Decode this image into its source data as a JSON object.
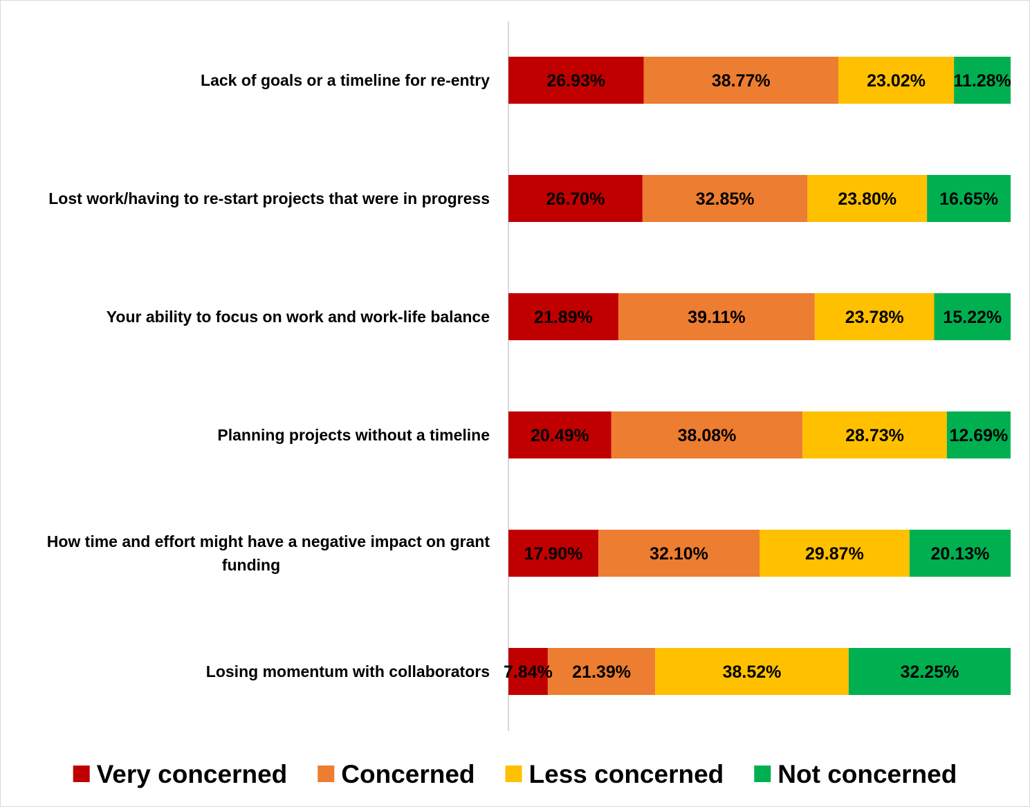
{
  "chart_data": {
    "type": "bar",
    "orientation": "horizontal",
    "stacked": "percent",
    "categories": [
      "Lack of goals or a timeline for re-entry",
      "Lost work/having to re-start projects that were in progress",
      "Your ability to focus on work and work-life balance",
      "Planning projects without a timeline",
      "How time and effort might have a negative impact on grant funding",
      "Losing momentum with collaborators"
    ],
    "category_label_lines": [
      [
        "Lack of goals or a timeline for re-entry"
      ],
      [
        "Lost work/having to re-start projects that were in progress"
      ],
      [
        "Your ability to focus on work and work-life balance"
      ],
      [
        "Planning projects without a timeline"
      ],
      [
        "How time and effort might have a negative impact on grant",
        "funding"
      ],
      [
        "Losing momentum with collaborators"
      ]
    ],
    "series": [
      {
        "name": "Very concerned",
        "color": "#C00000",
        "values": [
          26.93,
          26.7,
          21.89,
          20.49,
          17.9,
          7.84
        ],
        "labels": [
          "26.93%",
          "26.70%",
          "21.89%",
          "20.49%",
          "17.90%",
          "7.84%"
        ]
      },
      {
        "name": "Concerned",
        "color": "#ED7D31",
        "values": [
          38.77,
          32.85,
          39.11,
          38.08,
          32.1,
          21.39
        ],
        "labels": [
          "38.77%",
          "32.85%",
          "39.11%",
          "38.08%",
          "32.10%",
          "21.39%"
        ]
      },
      {
        "name": "Less concerned",
        "color": "#FFC000",
        "values": [
          23.02,
          23.8,
          23.78,
          28.73,
          29.87,
          38.52
        ],
        "labels": [
          "23.02%",
          "23.80%",
          "23.78%",
          "28.73%",
          "29.87%",
          "38.52%"
        ]
      },
      {
        "name": "Not concerned",
        "color": "#00B050",
        "values": [
          11.28,
          16.65,
          15.22,
          12.69,
          20.13,
          32.25
        ],
        "labels": [
          "11.28%",
          "16.65%",
          "15.22%",
          "12.69%",
          "20.13%",
          "32.25%"
        ]
      }
    ],
    "xlim": [
      0,
      100
    ],
    "axis_color": "#d9d9d9",
    "legend": "bottom",
    "grid": false,
    "title": "",
    "xlabel": "",
    "ylabel": ""
  }
}
